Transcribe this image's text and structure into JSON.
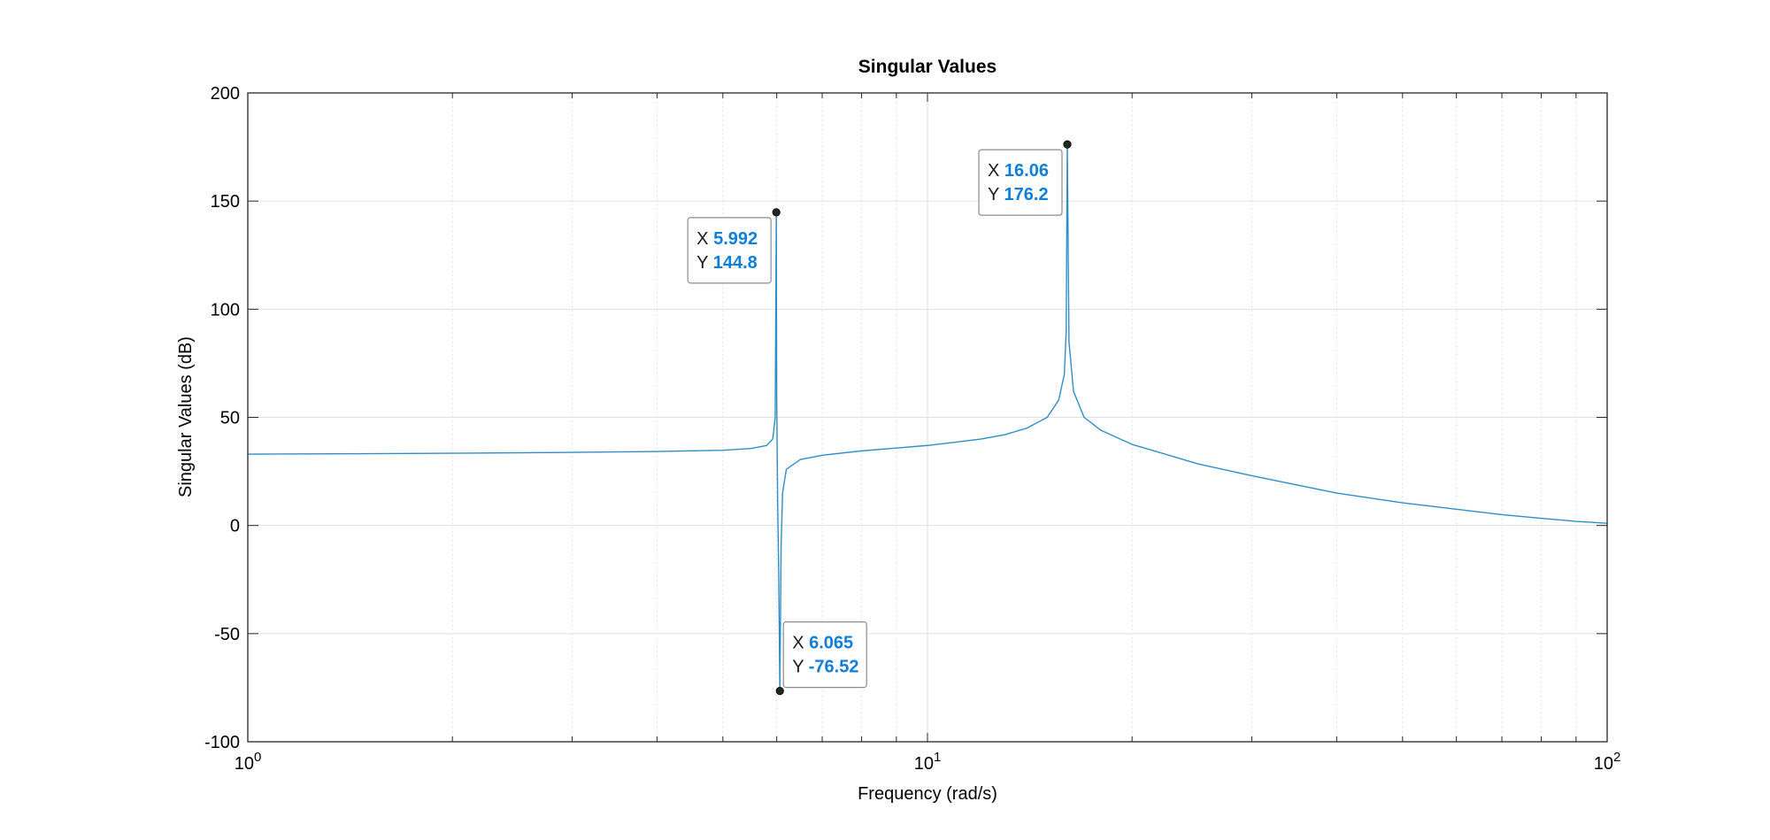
{
  "chart_data": {
    "type": "line",
    "title": "Singular Values",
    "xlabel": "Frequency (rad/s)",
    "ylabel": "Singular Values (dB)",
    "xscale": "log",
    "xlim": [
      1,
      100
    ],
    "ylim": [
      -100,
      200
    ],
    "grid": true,
    "x_ticks": [
      {
        "value": 1,
        "base": "10",
        "exp": "0"
      },
      {
        "value": 10,
        "base": "10",
        "exp": "1"
      },
      {
        "value": 100,
        "base": "10",
        "exp": "2"
      }
    ],
    "y_ticks": [
      {
        "value": -100,
        "label": "-100"
      },
      {
        "value": -50,
        "label": "-50"
      },
      {
        "value": 0,
        "label": "0"
      },
      {
        "value": 50,
        "label": "50"
      },
      {
        "value": 100,
        "label": "100"
      },
      {
        "value": 150,
        "label": "150"
      },
      {
        "value": 200,
        "label": "200"
      }
    ],
    "series": [
      {
        "color": "#2f8ec4",
        "x": [
          1.0,
          1.5,
          2.0,
          3.0,
          4.0,
          5.0,
          5.5,
          5.8,
          5.92,
          5.97,
          5.992,
          6.0,
          6.02,
          6.04,
          6.065,
          6.09,
          6.12,
          6.2,
          6.5,
          7.0,
          8.0,
          9.0,
          10.0,
          11.0,
          12.0,
          13.0,
          14.0,
          15.0,
          15.6,
          15.9,
          16.0,
          16.06,
          16.15,
          16.4,
          17.0,
          18.0,
          20.0,
          25.0,
          30.0,
          40.0,
          50.0,
          60.0,
          70.0,
          80.0,
          90.0,
          100.0
        ],
        "y": [
          33.0,
          33.2,
          33.4,
          33.8,
          34.2,
          34.8,
          35.6,
          37.0,
          40.0,
          50.0,
          144.8,
          60.0,
          10.0,
          -20.0,
          -76.52,
          -10.0,
          15.0,
          26.0,
          30.5,
          32.5,
          34.5,
          35.8,
          37.0,
          38.5,
          40.0,
          42.0,
          45.0,
          50.0,
          58.0,
          70.0,
          90.0,
          176.2,
          85.0,
          62.0,
          50.0,
          44.0,
          37.5,
          28.5,
          23.0,
          15.0,
          10.5,
          7.5,
          5.0,
          3.3,
          1.9,
          1.0
        ]
      }
    ],
    "datatips": [
      {
        "x": 5.992,
        "y": 144.8,
        "x_text": "5.992",
        "y_text": "144.8",
        "position": "below-left"
      },
      {
        "x": 16.06,
        "y": 176.2,
        "x_text": "16.06",
        "y_text": "176.2",
        "position": "below-left"
      },
      {
        "x": 6.065,
        "y": -76.52,
        "x_text": "6.065",
        "y_text": "-76.52",
        "position": "above-right"
      }
    ],
    "datatip_key_x": "X",
    "datatip_key_y": "Y"
  }
}
